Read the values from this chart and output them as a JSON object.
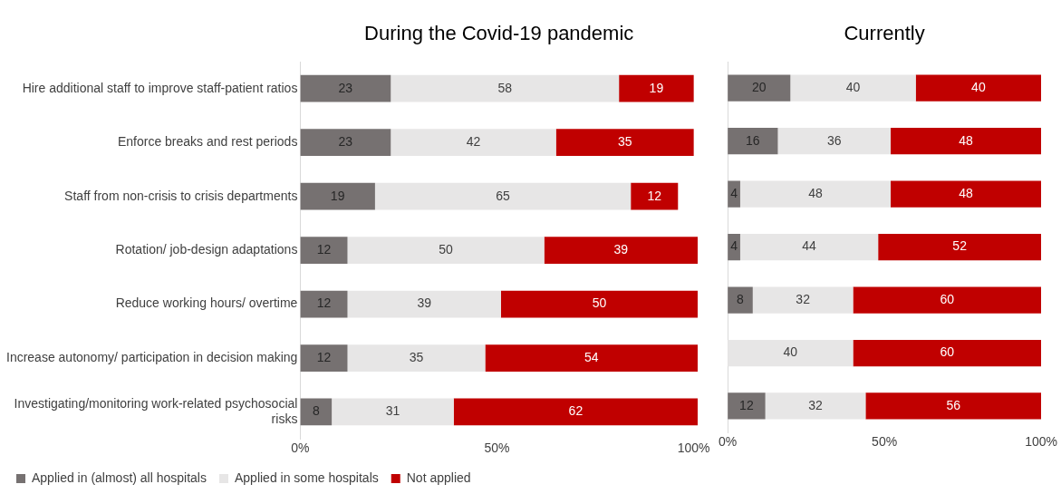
{
  "chart_data": [
    {
      "type": "bar",
      "orientation": "horizontal",
      "stacked": true,
      "title": "During the Covid-19 pandemic",
      "categories": [
        "Hire additional staff to improve staff-patient ratios",
        "Enforce breaks and rest periods",
        "Staff from non-crisis to crisis departments",
        "Rotation/ job-design adaptations",
        "Reduce working hours/ overtime",
        "Increase autonomy/ participation in decision making",
        "Investigating/monitoring work-related psychosocial risks"
      ],
      "series": [
        {
          "name": "Applied in (almost) all hospitals",
          "color": "#767171",
          "values": [
            23,
            23,
            19,
            12,
            12,
            12,
            8
          ],
          "value_labels": [
            "23",
            "23",
            "19",
            "12",
            "12",
            "12",
            "8"
          ]
        },
        {
          "name": "Applied in some hospitals",
          "color": "#e7e6e6",
          "values": [
            58,
            42,
            65,
            50,
            39,
            35,
            31
          ],
          "value_labels": [
            "58",
            "42",
            "65",
            "50",
            "39",
            "35",
            "31"
          ]
        },
        {
          "name": "Not applied",
          "color": "#c00000",
          "values": [
            19,
            35,
            12,
            39,
            50,
            54,
            62
          ],
          "value_labels": [
            "19",
            "35",
            "12",
            "39",
            "50",
            "54",
            "62"
          ]
        }
      ],
      "xlim": [
        0,
        101
      ],
      "xticks": [
        {
          "value": 0,
          "label": "0%"
        },
        {
          "value": 50,
          "label": "50%"
        },
        {
          "value": 100,
          "label": "100%"
        }
      ],
      "grid": false,
      "legend": "bottom"
    },
    {
      "type": "bar",
      "orientation": "horizontal",
      "stacked": true,
      "title": "Currently",
      "categories": [
        null,
        null,
        null,
        null,
        null,
        null,
        null
      ],
      "series": [
        {
          "color": "#767171",
          "values": [
            20,
            16,
            4,
            4,
            8,
            0,
            12
          ],
          "value_labels": [
            "20",
            "16",
            "4",
            "4",
            "8",
            null,
            "12"
          ]
        },
        {
          "color": "#e7e6e6",
          "values": [
            40,
            36,
            48,
            44,
            32,
            40,
            32
          ],
          "value_labels": [
            "40",
            "36",
            "48",
            "44",
            "32",
            "40",
            "32"
          ]
        },
        {
          "color": "#c00000",
          "values": [
            40,
            48,
            48,
            52,
            60,
            60,
            56
          ],
          "value_labels": [
            "40",
            "48",
            "48",
            "52",
            "60",
            "60",
            "56"
          ]
        }
      ],
      "xlim": [
        0,
        100
      ],
      "xticks": [
        {
          "value": 0,
          "label": "0%"
        },
        {
          "value": 50,
          "label": "50%"
        },
        {
          "value": 100,
          "label": "100%"
        }
      ],
      "grid": false,
      "legend": false,
      "tick_labels": "x"
    }
  ]
}
